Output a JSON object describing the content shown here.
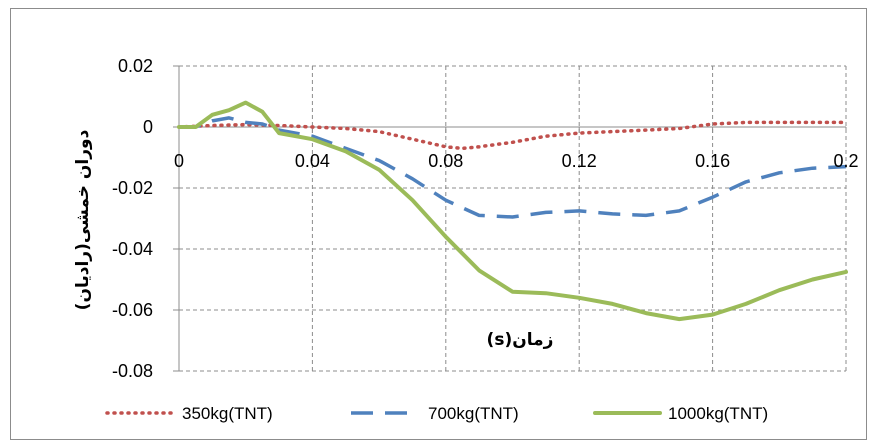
{
  "chart_data": {
    "type": "line",
    "xlabel": "زمان(s)",
    "ylabel": "دوران خمشی(رادیان)",
    "xlim": [
      0,
      0.2
    ],
    "ylim": [
      -0.08,
      0.02
    ],
    "x_ticks": [
      "0",
      "0.04",
      "0.08",
      "0.12",
      "0.16",
      "0.2"
    ],
    "y_ticks": [
      "0.02",
      "0",
      "-0.02",
      "-0.04",
      "-0.06",
      "-0.08"
    ],
    "grid": "dashed",
    "legend_position": "bottom",
    "series": [
      {
        "name": "350kg(TNT)",
        "color": "#C0504D",
        "style": "dotted",
        "points": [
          [
            0,
            0
          ],
          [
            0.01,
            0.0005
          ],
          [
            0.02,
            0.0008
          ],
          [
            0.03,
            0.0005
          ],
          [
            0.04,
            0
          ],
          [
            0.05,
            -0.0005
          ],
          [
            0.06,
            -0.0015
          ],
          [
            0.07,
            -0.004
          ],
          [
            0.08,
            -0.0065
          ],
          [
            0.085,
            -0.007
          ],
          [
            0.09,
            -0.0065
          ],
          [
            0.1,
            -0.005
          ],
          [
            0.11,
            -0.003
          ],
          [
            0.12,
            -0.002
          ],
          [
            0.13,
            -0.0015
          ],
          [
            0.14,
            -0.001
          ],
          [
            0.15,
            -0.0005
          ],
          [
            0.16,
            0.001
          ],
          [
            0.17,
            0.0015
          ],
          [
            0.18,
            0.0015
          ],
          [
            0.19,
            0.0015
          ],
          [
            0.2,
            0.0015
          ]
        ]
      },
      {
        "name": "700kg(TNT)",
        "color": "#4F81BD",
        "style": "dashed",
        "points": [
          [
            0,
            0
          ],
          [
            0.005,
            0
          ],
          [
            0.01,
            0.002
          ],
          [
            0.015,
            0.003
          ],
          [
            0.02,
            0.0015
          ],
          [
            0.025,
            0.001
          ],
          [
            0.03,
            -0.001
          ],
          [
            0.04,
            -0.003
          ],
          [
            0.05,
            -0.007
          ],
          [
            0.06,
            -0.011
          ],
          [
            0.07,
            -0.017
          ],
          [
            0.08,
            -0.024
          ],
          [
            0.09,
            -0.029
          ],
          [
            0.1,
            -0.0295
          ],
          [
            0.11,
            -0.028
          ],
          [
            0.12,
            -0.0275
          ],
          [
            0.13,
            -0.0285
          ],
          [
            0.14,
            -0.029
          ],
          [
            0.15,
            -0.0275
          ],
          [
            0.16,
            -0.023
          ],
          [
            0.17,
            -0.018
          ],
          [
            0.18,
            -0.015
          ],
          [
            0.19,
            -0.0135
          ],
          [
            0.2,
            -0.013
          ]
        ]
      },
      {
        "name": "1000kg(TNT)",
        "color": "#9BBB59",
        "style": "solid",
        "points": [
          [
            0,
            0
          ],
          [
            0.005,
            0
          ],
          [
            0.01,
            0.004
          ],
          [
            0.015,
            0.0055
          ],
          [
            0.02,
            0.008
          ],
          [
            0.025,
            0.005
          ],
          [
            0.03,
            -0.002
          ],
          [
            0.04,
            -0.004
          ],
          [
            0.05,
            -0.008
          ],
          [
            0.06,
            -0.014
          ],
          [
            0.07,
            -0.024
          ],
          [
            0.08,
            -0.036
          ],
          [
            0.09,
            -0.047
          ],
          [
            0.1,
            -0.054
          ],
          [
            0.11,
            -0.0545
          ],
          [
            0.12,
            -0.056
          ],
          [
            0.13,
            -0.058
          ],
          [
            0.14,
            -0.061
          ],
          [
            0.15,
            -0.063
          ],
          [
            0.16,
            -0.0615
          ],
          [
            0.17,
            -0.058
          ],
          [
            0.18,
            -0.0535
          ],
          [
            0.19,
            -0.05
          ],
          [
            0.2,
            -0.0475
          ]
        ]
      }
    ]
  }
}
